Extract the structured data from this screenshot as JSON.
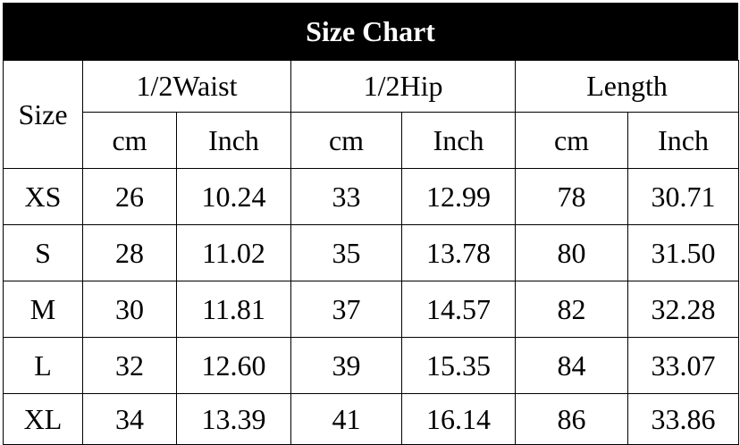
{
  "title": "Size Chart",
  "headers": {
    "size": "Size",
    "groups": [
      "1/2Waist",
      "1/2Hip",
      "Length"
    ],
    "units": [
      "cm",
      "Inch",
      "cm",
      "Inch",
      "cm",
      "Inch"
    ]
  },
  "rows": [
    [
      "XS",
      "26",
      "10.24",
      "33",
      "12.99",
      "78",
      "30.71"
    ],
    [
      "S",
      "28",
      "11.02",
      "35",
      "13.78",
      "80",
      "31.50"
    ],
    [
      "M",
      "30",
      "11.81",
      "37",
      "14.57",
      "82",
      "32.28"
    ],
    [
      "L",
      "32",
      "12.60",
      "39",
      "15.35",
      "84",
      "33.07"
    ],
    [
      "XL",
      "34",
      "13.39",
      "41",
      "16.14",
      "86",
      "33.86"
    ]
  ]
}
